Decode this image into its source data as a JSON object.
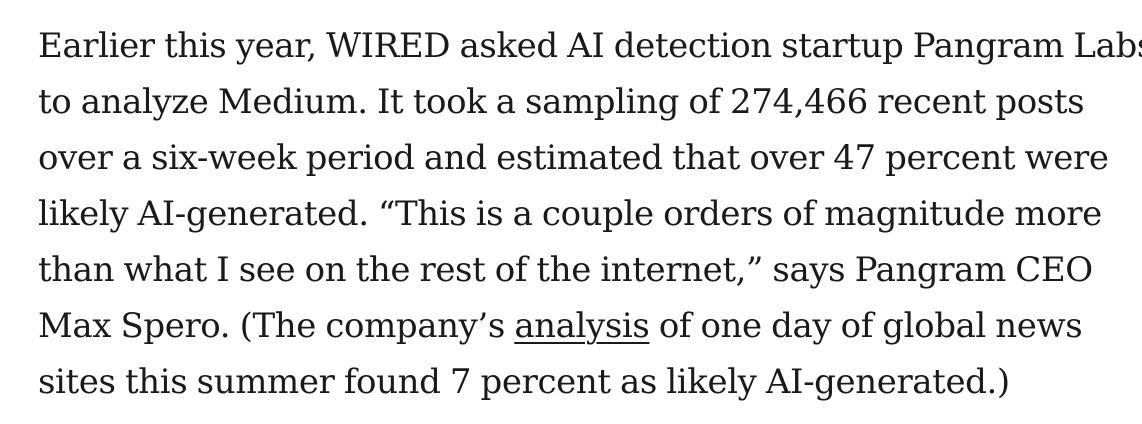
{
  "article": {
    "lines": [
      "Earlier this year, WIRED asked AI detection startup Pangram Labs",
      "to analyze Medium. It took a sampling of 274,466 recent posts",
      "over a six-week period and estimated that over 47 percent were",
      "likely AI-generated. “This is a couple orders of magnitude more",
      "than what I see on the rest of the internet,” says Pangram CEO"
    ],
    "line6": {
      "before": "Max Spero. (The company’s ",
      "link": "analysis",
      "after": " of one day of global news"
    },
    "line7": "sites this summer found 7 percent as likely AI-generated.)"
  }
}
